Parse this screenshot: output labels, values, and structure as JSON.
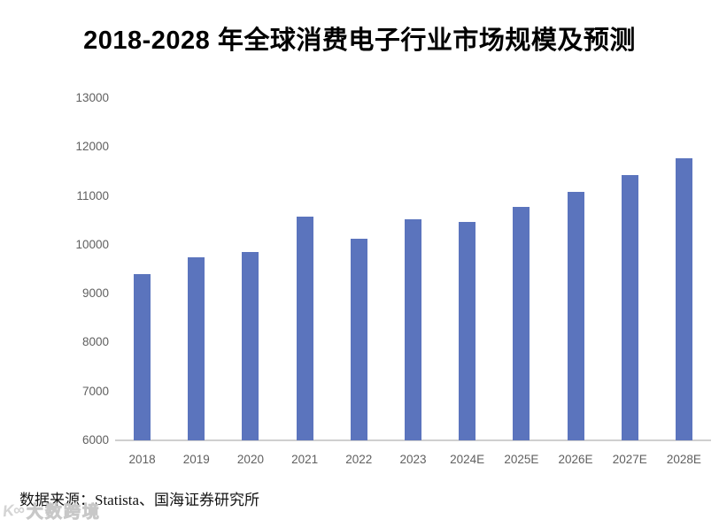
{
  "title": "2018-2028 年全球消费电子行业市场规模及预测",
  "source_note": "数据来源：Statista、国海证券研究所",
  "watermark": {
    "logo": "K∞",
    "text": "大数跨境"
  },
  "colors": {
    "bar": "#5B74BD",
    "axis_label": "#606060",
    "axis_line": "#cfcfcf",
    "title": "#000000",
    "watermark": "#d4d4d4"
  },
  "chart_data": {
    "type": "bar",
    "title": "2018-2028 年全球消费电子行业市场规模及预测",
    "categories": [
      "2018",
      "2019",
      "2020",
      "2021",
      "2022",
      "2023",
      "2024E",
      "2025E",
      "2026E",
      "2027E",
      "2028E"
    ],
    "values": [
      9400,
      9750,
      9850,
      10580,
      10120,
      10530,
      10470,
      10780,
      11080,
      11430,
      11770
    ],
    "xlabel": "",
    "ylabel": "",
    "ylim": [
      6000,
      13000
    ],
    "ytick_step": 1000,
    "yticks": [
      6000,
      7000,
      8000,
      9000,
      10000,
      11000,
      12000,
      13000
    ],
    "grid": false,
    "legend": "none",
    "bar_color": "#5B74BD",
    "source": "数据来源：Statista、国海证券研究所"
  }
}
